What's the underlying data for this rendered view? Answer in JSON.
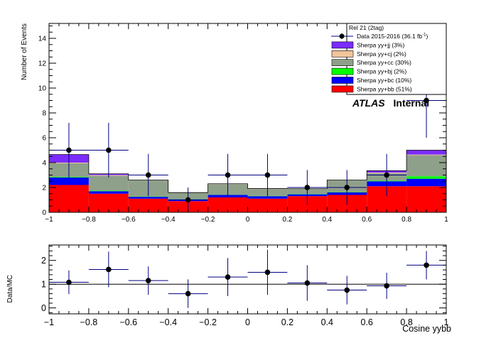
{
  "chart_data": [
    {
      "type": "stacked-histogram",
      "ylabel": "Number of Events",
      "xlim": [
        -1,
        1
      ],
      "ylim": [
        0,
        15.2
      ],
      "x_ticks": [
        -1,
        -0.8,
        -0.6,
        -0.4,
        -0.2,
        0,
        0.2,
        0.4,
        0.6,
        0.8,
        1
      ],
      "x_tick_labels": [
        "−1",
        "−0.8",
        "−0.6",
        "−0.4",
        "−0.2",
        "0",
        "0.2",
        "0.4",
        "0.6",
        "0.8",
        "1"
      ],
      "y_ticks": [
        0,
        2,
        4,
        6,
        8,
        10,
        12,
        14
      ],
      "y_tick_labels": [
        "0",
        "2",
        "4",
        "6",
        "8",
        "10",
        "12",
        "14"
      ],
      "bin_edges": [
        -1,
        -0.8,
        -0.6,
        -0.4,
        -0.2,
        0,
        0.2,
        0.4,
        0.6,
        0.8,
        1
      ],
      "stack_order": "bottom-to-top",
      "series": [
        {
          "name": "Sherpa yy+bb (51%)",
          "color": "#ff0000",
          "values": [
            2.2,
            1.5,
            1.1,
            0.9,
            1.2,
            1.1,
            1.3,
            1.4,
            2.1,
            2.1
          ]
        },
        {
          "name": "Sherpa yy+bc (10%)",
          "color": "#0000ff",
          "values": [
            0.6,
            0.2,
            0.15,
            0.15,
            0.2,
            0.2,
            0.15,
            0.2,
            0.4,
            0.6
          ]
        },
        {
          "name": "Sherpa yy+bj (2%)",
          "color": "#00ff00",
          "values": [
            0.05,
            0.05,
            0.03,
            0.02,
            0.02,
            0.03,
            0.03,
            0.03,
            0.05,
            0.2
          ]
        },
        {
          "name": "Sherpa yy+cc (30%)",
          "color": "#8fa08a",
          "values": [
            1.1,
            1.2,
            1.3,
            0.5,
            0.85,
            0.55,
            0.4,
            0.95,
            0.6,
            1.7
          ]
        },
        {
          "name": "Sherpa yy+cj (2%)",
          "color": "#f2c49c",
          "values": [
            0.05,
            0.05,
            0.02,
            0.02,
            0.03,
            0.03,
            0.02,
            0.02,
            0.05,
            0.05
          ]
        },
        {
          "name": "Sherpa yy+jj (3%)",
          "color": "#7b2bff",
          "values": [
            0.65,
            0.1,
            0.0,
            0.0,
            0.0,
            0.0,
            0.0,
            0.0,
            0.15,
            0.35
          ]
        }
      ],
      "data_points": {
        "name": "Data 2015-2016 (36.1 fb",
        "name_suffix": "-1",
        "name_close": ")",
        "x": [
          -0.9,
          -0.7,
          -0.5,
          -0.3,
          -0.1,
          0.1,
          0.3,
          0.5,
          0.7,
          0.9
        ],
        "y": [
          5,
          5,
          3,
          1,
          3,
          3,
          2,
          2,
          3,
          9
        ],
        "y_err_up": [
          2.2,
          2.2,
          1.7,
          1.0,
          1.7,
          1.7,
          1.4,
          1.4,
          1.7,
          3.0
        ],
        "y_err_down": [
          2.2,
          2.2,
          1.7,
          1.0,
          1.7,
          1.7,
          1.4,
          1.4,
          1.7,
          3.0
        ]
      },
      "legend": {
        "placement": "top-right",
        "header": "Rel 21 (2tag)"
      },
      "annotation": {
        "bold": "ATLAS",
        "italic": "Internal"
      }
    },
    {
      "type": "ratio-scatter",
      "xlabel": "Cosine yybb",
      "ylabel": "Data/MC",
      "xlim": [
        -1,
        1
      ],
      "ylim": [
        -0.25,
        2.65
      ],
      "x_ticks": [
        -1,
        -0.8,
        -0.6,
        -0.4,
        -0.2,
        0,
        0.2,
        0.4,
        0.6,
        0.8,
        1
      ],
      "x_tick_labels": [
        "−1",
        "−0.8",
        "−0.6",
        "−0.4",
        "−0.2",
        "0",
        "0.2",
        "0.4",
        "0.6",
        "0.8",
        "1"
      ],
      "y_ticks": [
        0,
        1,
        2
      ],
      "y_tick_labels": [
        "0",
        "1",
        "2"
      ],
      "reference_line": 1,
      "x": [
        -0.9,
        -0.7,
        -0.5,
        -0.3,
        -0.1,
        0.1,
        0.3,
        0.5,
        0.7,
        0.9
      ],
      "y": [
        1.08,
        1.62,
        1.15,
        0.6,
        1.3,
        1.5,
        1.05,
        0.75,
        0.93,
        1.8
      ],
      "y_err_up": [
        0.5,
        0.75,
        0.6,
        0.6,
        0.8,
        0.95,
        0.75,
        0.6,
        0.55,
        0.6
      ],
      "y_err_down": [
        0.5,
        0.75,
        0.6,
        0.6,
        0.8,
        0.95,
        0.75,
        0.6,
        0.55,
        0.6
      ]
    }
  ]
}
